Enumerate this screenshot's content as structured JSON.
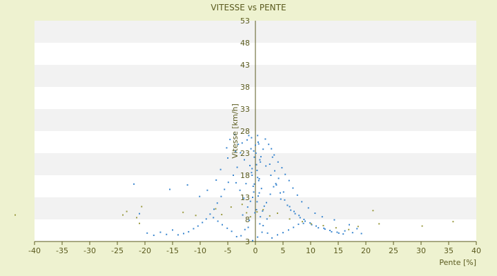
{
  "chart_data": {
    "type": "scatter",
    "title": "VITESSE vs PENTE",
    "xlabel": "Pente [%]",
    "ylabel": "Vitesse [km/h]",
    "xlim": [
      -40,
      40
    ],
    "ylim": [
      3,
      53
    ],
    "x_ticks": [
      -40,
      -35,
      -30,
      -25,
      -20,
      -15,
      -10,
      -5,
      0,
      5,
      10,
      15,
      20,
      25,
      30,
      35,
      40
    ],
    "y_ticks": [
      3,
      8,
      13,
      18,
      23,
      28,
      33,
      38,
      43,
      48,
      53
    ],
    "grid": "horizontal alternating bands",
    "series": [
      {
        "color": "#3a86cf",
        "points": [
          [
            -0.5,
            3.2
          ],
          [
            0.4,
            4.0
          ],
          [
            1.2,
            5.1
          ],
          [
            -1.3,
            6.2
          ],
          [
            0.8,
            7.0
          ],
          [
            2.1,
            8.1
          ],
          [
            -2.3,
            9.0
          ],
          [
            0.2,
            10.2
          ],
          [
            1.6,
            11.0
          ],
          [
            -0.9,
            12.1
          ],
          [
            0.5,
            13.3
          ],
          [
            -0.3,
            14.2
          ],
          [
            1.1,
            15.0
          ],
          [
            -1.7,
            16.1
          ],
          [
            0.7,
            17.2
          ],
          [
            -0.6,
            18.0
          ],
          [
            0.3,
            19.1
          ],
          [
            -1.0,
            20.2
          ],
          [
            0.9,
            21.0
          ],
          [
            -0.2,
            22.1
          ],
          [
            0.1,
            23.0
          ],
          [
            -0.8,
            24.0
          ],
          [
            0.6,
            25.1
          ],
          [
            -1.5,
            26.0
          ],
          [
            0.4,
            27.0
          ],
          [
            -3.8,
            27.2
          ],
          [
            -4.6,
            26.1
          ],
          [
            -3.1,
            25.0
          ],
          [
            -5.2,
            24.2
          ],
          [
            -2.7,
            23.1
          ],
          [
            1.8,
            26.2
          ],
          [
            2.4,
            25.0
          ],
          [
            1.4,
            23.9
          ],
          [
            3.1,
            22.1
          ],
          [
            2.6,
            20.5
          ],
          [
            3.5,
            19.0
          ],
          [
            4.2,
            17.3
          ],
          [
            3.8,
            15.8
          ],
          [
            5.1,
            14.2
          ],
          [
            4.6,
            12.6
          ],
          [
            5.8,
            11.2
          ],
          [
            6.4,
            10.1
          ],
          [
            7.2,
            9.3
          ],
          [
            8.1,
            8.4
          ],
          [
            9.0,
            7.6
          ],
          [
            10.2,
            6.8
          ],
          [
            11.4,
            6.1
          ],
          [
            12.6,
            5.8
          ],
          [
            13.8,
            5.2
          ],
          [
            15.1,
            4.9
          ],
          [
            16.2,
            5.4
          ],
          [
            17.0,
            6.8
          ],
          [
            17.6,
            5.0
          ],
          [
            18.4,
            5.9
          ],
          [
            19.2,
            4.8
          ],
          [
            14.3,
            7.9
          ],
          [
            12.1,
            8.6
          ],
          [
            10.8,
            9.4
          ],
          [
            9.6,
            10.6
          ],
          [
            8.4,
            12.0
          ],
          [
            7.6,
            13.5
          ],
          [
            6.8,
            15.1
          ],
          [
            6.1,
            16.8
          ],
          [
            5.4,
            18.2
          ],
          [
            4.8,
            19.7
          ],
          [
            4.1,
            21.0
          ],
          [
            3.4,
            22.6
          ],
          [
            2.9,
            24.0
          ],
          [
            -2.0,
            21.5
          ],
          [
            -3.3,
            19.8
          ],
          [
            -4.0,
            18.0
          ],
          [
            -4.9,
            16.4
          ],
          [
            -5.6,
            14.8
          ],
          [
            -6.2,
            13.2
          ],
          [
            -6.9,
            11.7
          ],
          [
            -7.5,
            10.3
          ],
          [
            -8.2,
            9.2
          ],
          [
            -8.9,
            8.1
          ],
          [
            -9.6,
            7.3
          ],
          [
            -10.4,
            6.5
          ],
          [
            -11.2,
            5.9
          ],
          [
            -12.1,
            5.2
          ],
          [
            -13.0,
            4.8
          ],
          [
            -14.0,
            4.5
          ],
          [
            -15.0,
            5.6
          ],
          [
            -16.1,
            4.6
          ],
          [
            -17.2,
            5.1
          ],
          [
            -18.4,
            4.4
          ],
          [
            -19.6,
            4.9
          ],
          [
            -21.0,
            9.3
          ],
          [
            -22.0,
            16.0
          ],
          [
            -15.5,
            14.8
          ],
          [
            -12.3,
            15.8
          ],
          [
            -10.1,
            13.2
          ],
          [
            -8.7,
            14.6
          ],
          [
            -7.1,
            16.9
          ],
          [
            -6.3,
            19.3
          ],
          [
            -5.0,
            21.9
          ],
          [
            -3.6,
            23.4
          ],
          [
            -2.4,
            25.3
          ],
          [
            -1.2,
            27.0
          ],
          [
            0.0,
            24.8
          ],
          [
            1.0,
            22.2
          ],
          [
            1.9,
            20.1
          ],
          [
            2.8,
            18.0
          ],
          [
            3.7,
            16.1
          ],
          [
            4.5,
            14.0
          ],
          [
            5.3,
            12.4
          ],
          [
            6.2,
            10.9
          ],
          [
            7.0,
            9.8
          ],
          [
            7.9,
            8.9
          ],
          [
            8.8,
            8.0
          ],
          [
            9.9,
            7.2
          ],
          [
            11.0,
            6.5
          ],
          [
            12.4,
            6.0
          ],
          [
            13.5,
            5.5
          ],
          [
            14.8,
            5.1
          ],
          [
            15.9,
            4.7
          ],
          [
            -0.4,
            15.5
          ],
          [
            0.6,
            16.8
          ],
          [
            -0.7,
            18.6
          ],
          [
            0.2,
            20.4
          ],
          [
            -0.1,
            9.5
          ],
          [
            0.9,
            8.6
          ],
          [
            -1.1,
            7.8
          ],
          [
            1.4,
            6.6
          ],
          [
            -1.9,
            5.7
          ],
          [
            2.2,
            4.9
          ],
          [
            -2.6,
            4.3
          ],
          [
            3.0,
            3.8
          ],
          [
            -3.4,
            4.1
          ],
          [
            4.0,
            4.5
          ],
          [
            -4.3,
            5.3
          ],
          [
            5.0,
            5.0
          ],
          [
            -5.1,
            6.0
          ],
          [
            6.0,
            5.6
          ],
          [
            -6.0,
            6.8
          ],
          [
            6.9,
            6.2
          ],
          [
            -6.8,
            7.6
          ],
          [
            7.8,
            6.9
          ],
          [
            -7.6,
            8.4
          ],
          [
            8.7,
            7.1
          ],
          [
            1.3,
            9.9
          ],
          [
            -1.4,
            10.8
          ],
          [
            2.0,
            11.8
          ],
          [
            -2.1,
            12.8
          ],
          [
            2.7,
            13.7
          ],
          [
            -2.8,
            14.6
          ],
          [
            3.3,
            15.4
          ],
          [
            -3.5,
            16.3
          ],
          [
            0.3,
            12.0
          ],
          [
            -0.5,
            13.0
          ],
          [
            0.7,
            14.0
          ],
          [
            -0.2,
            16.0
          ],
          [
            0.4,
            17.5
          ],
          [
            -0.6,
            19.5
          ],
          [
            0.8,
            21.5
          ],
          [
            -0.3,
            23.5
          ],
          [
            0.5,
            25.5
          ],
          [
            -0.7,
            26.5
          ]
        ]
      },
      {
        "color": "#9a9a40",
        "points": [
          [
            -43.5,
            9.0
          ],
          [
            -24.0,
            9.0
          ],
          [
            -23.3,
            9.8
          ],
          [
            -21.5,
            8.4
          ],
          [
            -20.6,
            10.9
          ],
          [
            -21.0,
            7.1
          ],
          [
            -13.1,
            9.6
          ],
          [
            -10.8,
            8.9
          ],
          [
            -7.2,
            10.4
          ],
          [
            -6.1,
            9.1
          ],
          [
            -4.4,
            10.8
          ],
          [
            -2.4,
            11.4
          ],
          [
            -1.6,
            9.5
          ],
          [
            -0.9,
            8.6
          ],
          [
            0.3,
            9.7
          ],
          [
            1.4,
            10.2
          ],
          [
            2.6,
            8.8
          ],
          [
            4.0,
            9.4
          ],
          [
            6.2,
            8.1
          ],
          [
            8.5,
            7.5
          ],
          [
            10.1,
            7.0
          ],
          [
            12.3,
            6.6
          ],
          [
            14.6,
            6.1
          ],
          [
            16.9,
            5.7
          ],
          [
            18.6,
            6.4
          ],
          [
            21.3,
            10.0
          ],
          [
            22.4,
            7.0
          ],
          [
            30.2,
            6.5
          ],
          [
            35.8,
            7.5
          ]
        ]
      }
    ]
  }
}
